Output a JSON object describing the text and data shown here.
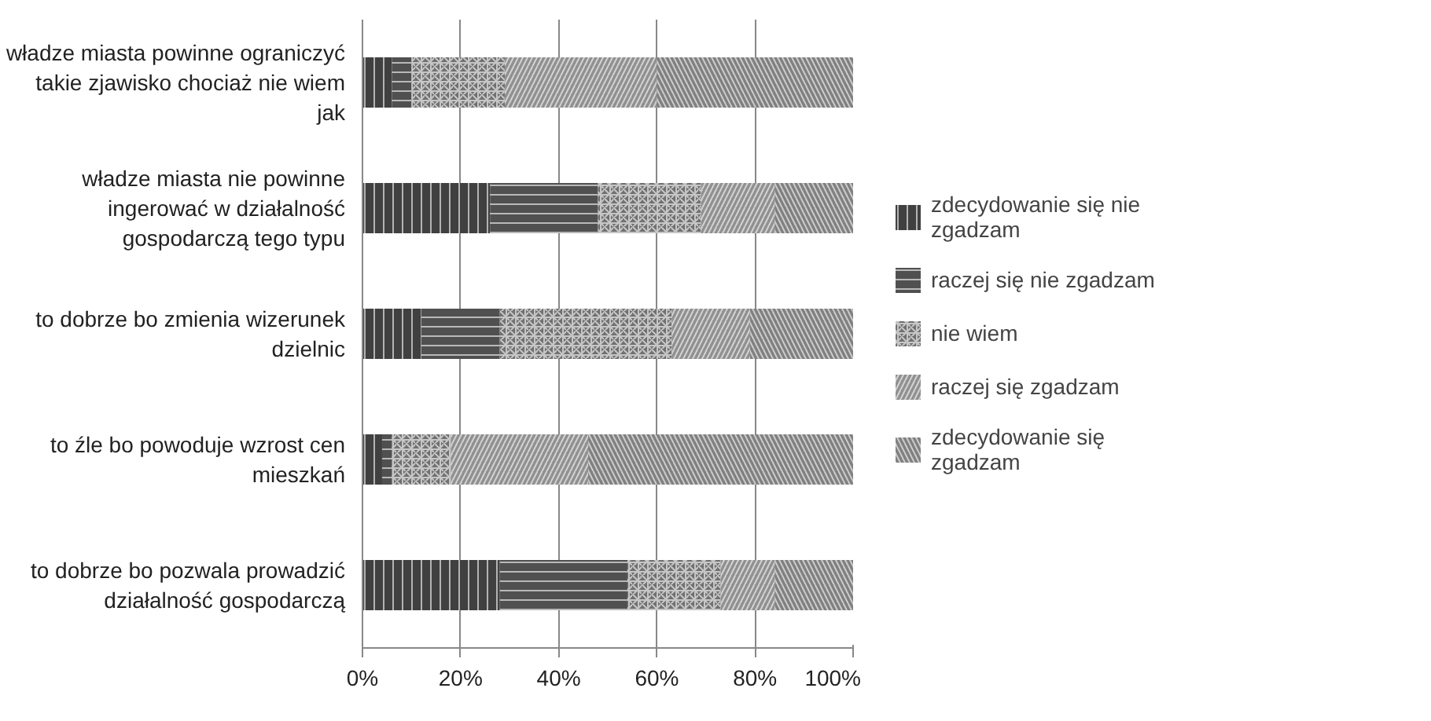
{
  "chart_data": {
    "type": "bar",
    "orientation": "horizontal",
    "stacked": true,
    "categories": [
      "władze miasta powinne ograniczyć takie zjawisko chociaż nie wiem jak",
      "władze miasta nie powinne ingerować w działalność gospodarczą tego typu",
      "to dobrze bo zmienia wizerunek dzielnic",
      "to źle bo powoduje wzrost cen mieszkań",
      "to dobrze bo pozwala prowadzić działalność gospodarczą"
    ],
    "series": [
      {
        "name": "zdecydowanie się nie zgadzam",
        "color": "#404040",
        "values": [
          6,
          26,
          12,
          4,
          28
        ]
      },
      {
        "name": "raczej się nie zgadzam",
        "color": "#505050",
        "values": [
          4,
          22,
          16,
          2,
          26
        ]
      },
      {
        "name": "nie wiem",
        "color": "#707070",
        "values": [
          19,
          21,
          35,
          12,
          19
        ]
      },
      {
        "name": "raczej się zgadzam",
        "color": "#909090",
        "values": [
          31,
          15,
          16,
          28,
          11
        ]
      },
      {
        "name": "zdecydowanie się zgadzam",
        "color": "#808080",
        "values": [
          40,
          16,
          21,
          54,
          16
        ]
      }
    ],
    "xlim": [
      0,
      100
    ],
    "xticks": [
      {
        "value": 0,
        "label": "0%"
      },
      {
        "value": 20,
        "label": "20%"
      },
      {
        "value": 40,
        "label": "40%"
      },
      {
        "value": 60,
        "label": "60%"
      },
      {
        "value": 80,
        "label": "80%"
      },
      {
        "value": 100,
        "label": "100%"
      }
    ],
    "grid": "x",
    "legend": "right"
  }
}
